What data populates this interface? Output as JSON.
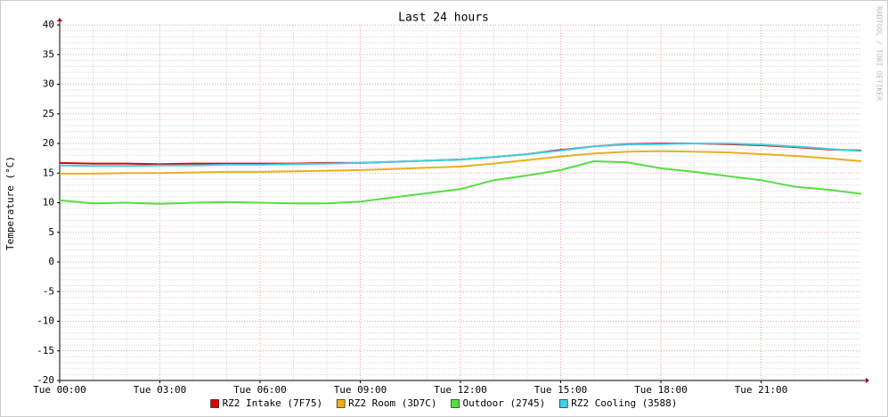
{
  "chart_data": {
    "type": "line",
    "title": "Last 24 hours",
    "y_label": "Temperature (°C)",
    "watermark": "RRDTOOL / TOBI OETIKER",
    "x": [
      0,
      1,
      2,
      3,
      4,
      5,
      6,
      7,
      8,
      9,
      10,
      11,
      12,
      13,
      14,
      15,
      16,
      17,
      18,
      19,
      20,
      21,
      22,
      23,
      24
    ],
    "xlim": [
      0,
      24
    ],
    "xticks": [
      {
        "value": 0,
        "label": "Tue 00:00"
      },
      {
        "value": 3,
        "label": "Tue 03:00"
      },
      {
        "value": 6,
        "label": "Tue 06:00"
      },
      {
        "value": 9,
        "label": "Tue 09:00"
      },
      {
        "value": 12,
        "label": "Tue 12:00"
      },
      {
        "value": 15,
        "label": "Tue 15:00"
      },
      {
        "value": 18,
        "label": "Tue 18:00"
      },
      {
        "value": 21,
        "label": "Tue 21:00"
      }
    ],
    "ylim": [
      -20,
      40
    ],
    "yticks": [
      -20,
      -15,
      -10,
      -5,
      0,
      5,
      10,
      15,
      20,
      25,
      30,
      35,
      40
    ],
    "grid": true,
    "legend": "bottom",
    "series": [
      {
        "name": "RZ2 Intake (7F75)",
        "color": "#e00000",
        "values": [
          16.7,
          16.6,
          16.6,
          16.5,
          16.6,
          16.6,
          16.6,
          16.6,
          16.7,
          16.7,
          16.9,
          17.1,
          17.3,
          17.7,
          18.2,
          18.9,
          19.5,
          19.9,
          20,
          20,
          19.9,
          19.7,
          19.4,
          19,
          18.8
        ]
      },
      {
        "name": "RZ2 Room (3D7C)",
        "color": "#e8b020",
        "values": [
          14.9,
          14.9,
          15,
          15,
          15.1,
          15.2,
          15.2,
          15.3,
          15.4,
          15.5,
          15.7,
          15.9,
          16.1,
          16.6,
          17.2,
          17.8,
          18.3,
          18.6,
          18.7,
          18.6,
          18.5,
          18.2,
          17.9,
          17.5,
          17
        ]
      },
      {
        "name": "Outdoor (2745)",
        "color": "#55dd44",
        "values": [
          10.4,
          9.9,
          10,
          9.8,
          10,
          10.1,
          10,
          9.9,
          9.9,
          10.2,
          10.9,
          11.6,
          12.3,
          13.8,
          14.6,
          15.5,
          17,
          16.8,
          15.8,
          15.2,
          14.5,
          13.8,
          12.7,
          12.2,
          11.5
        ]
      },
      {
        "name": "RZ2 Cooling (3588)",
        "color": "#40d0e8",
        "values": [
          16.3,
          16.2,
          16.2,
          16.3,
          16.3,
          16.4,
          16.4,
          16.5,
          16.6,
          16.7,
          16.9,
          17.1,
          17.3,
          17.7,
          18.2,
          18.8,
          19.5,
          19.8,
          19.9,
          20,
          20,
          19.8,
          19.5,
          19.1,
          18.7
        ]
      }
    ]
  }
}
